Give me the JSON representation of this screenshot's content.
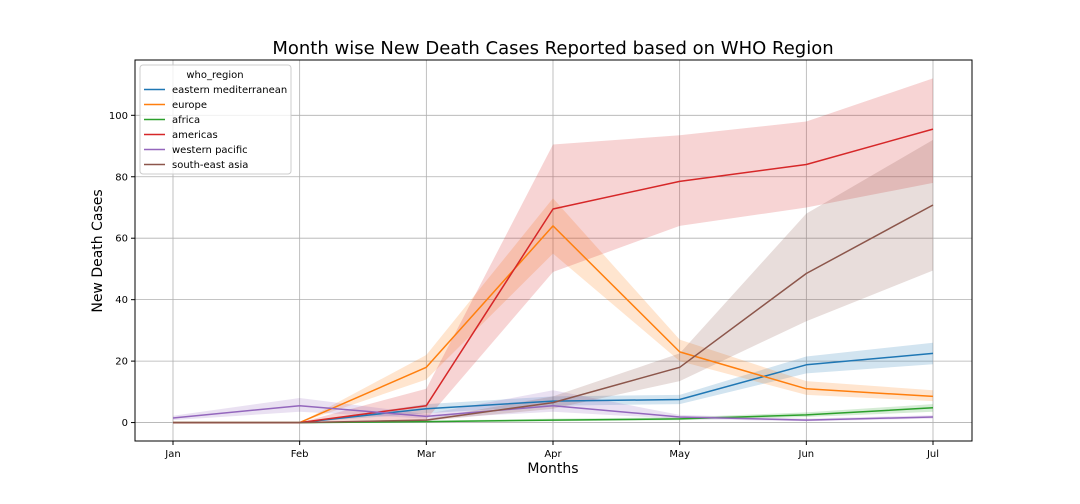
{
  "chart_data": {
    "type": "line",
    "title": "Month wise New Death Cases Reported based on WHO Region",
    "xlabel": "Months",
    "ylabel": "New Death Cases",
    "categories": [
      "Jan",
      "Feb",
      "Mar",
      "Apr",
      "May",
      "Jun",
      "Jul"
    ],
    "ylim": [
      -6,
      118
    ],
    "yticks": [
      0,
      20,
      40,
      60,
      80,
      100
    ],
    "grid": true,
    "legend": {
      "title": "who_region",
      "placement": "top-left"
    },
    "series": [
      {
        "name": "eastern mediterranean",
        "color": "#1f77b4",
        "values": [
          0,
          0,
          4.5,
          7,
          7.5,
          18.8,
          22.5
        ],
        "ci_low": [
          0,
          0,
          3,
          5.5,
          6,
          16,
          19
        ],
        "ci_high": [
          0,
          0,
          6,
          8.5,
          9,
          21.5,
          26
        ]
      },
      {
        "name": "europe",
        "color": "#ff7f0e",
        "values": [
          0,
          0,
          18,
          64,
          23,
          11,
          8.5
        ],
        "ci_low": [
          0,
          0,
          14,
          55,
          20,
          9,
          7
        ],
        "ci_high": [
          0,
          0,
          22,
          73,
          27,
          13.5,
          10.5
        ]
      },
      {
        "name": "africa",
        "color": "#2ca02c",
        "values": [
          0,
          0,
          0.3,
          0.8,
          1.2,
          2.5,
          4.8
        ],
        "ci_low": [
          0,
          0,
          0.1,
          0.4,
          0.8,
          1.8,
          3.5
        ],
        "ci_high": [
          0,
          0,
          0.6,
          1.3,
          1.7,
          3.3,
          6
        ]
      },
      {
        "name": "americas",
        "color": "#d62728",
        "values": [
          0,
          0,
          5.5,
          69.5,
          78.5,
          84,
          95.5
        ],
        "ci_low": [
          0,
          0,
          1,
          49,
          64,
          70,
          78
        ],
        "ci_high": [
          0,
          0,
          11,
          90.5,
          93.5,
          98,
          112
        ]
      },
      {
        "name": "western pacific",
        "color": "#9467bd",
        "values": [
          1.5,
          5.5,
          2,
          5.5,
          1.8,
          0.8,
          1.8
        ],
        "ci_low": [
          0.8,
          3.5,
          1.3,
          3.5,
          1.2,
          0.4,
          1.3
        ],
        "ci_high": [
          2.2,
          8,
          2.8,
          10.5,
          2.5,
          1.3,
          2.4
        ]
      },
      {
        "name": "south-east asia",
        "color": "#8c564b",
        "values": [
          0,
          0,
          0.8,
          6.5,
          18,
          48.5,
          70.8
        ],
        "ci_low": [
          0,
          0,
          0.5,
          4.5,
          13.5,
          33,
          49.5
        ],
        "ci_high": [
          0,
          0,
          1.2,
          8.5,
          22.5,
          68,
          92
        ]
      }
    ]
  }
}
